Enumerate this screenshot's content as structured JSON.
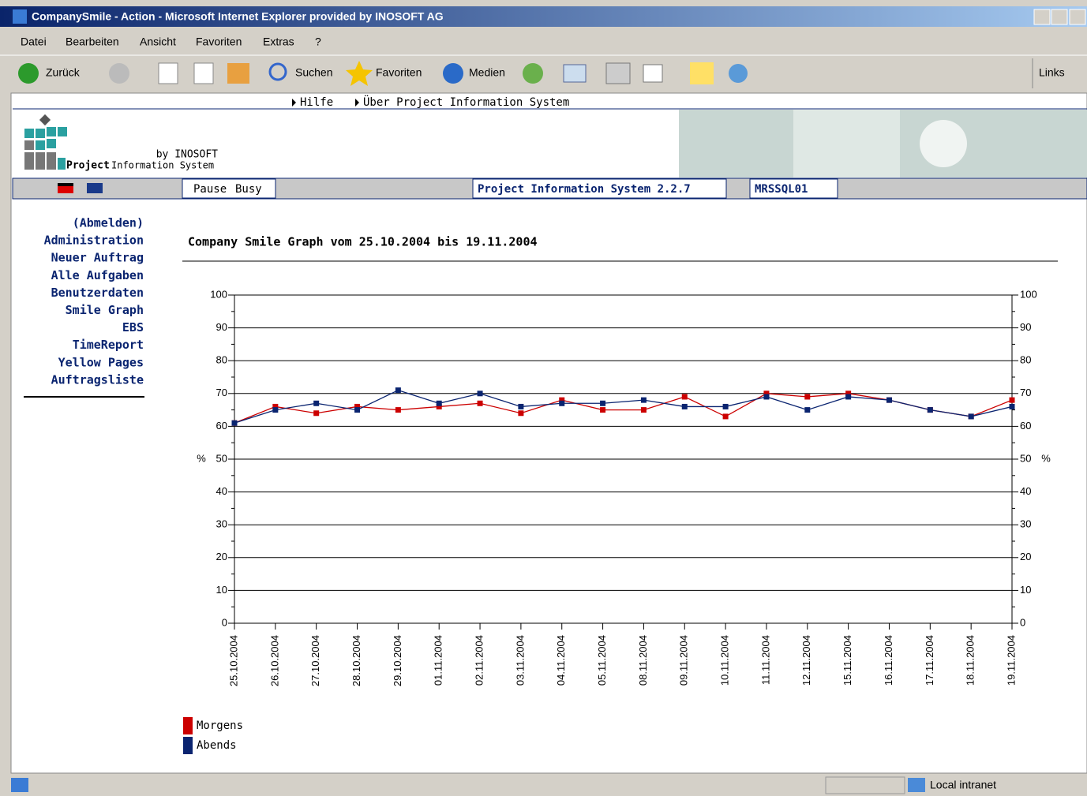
{
  "window": {
    "title": "CompanySmile - Action - Microsoft Internet Explorer provided by INOSOFT AG"
  },
  "menu": [
    "Datei",
    "Bearbeiten",
    "Ansicht",
    "Favoriten",
    "Extras",
    "?"
  ],
  "toolbar": {
    "back": "Zurück",
    "search": "Suchen",
    "favorites": "Favoriten",
    "media": "Medien",
    "links": "Links"
  },
  "page": {
    "top_links": [
      "Hilfe",
      "Über Project Information System"
    ],
    "logo": {
      "by": "by INOSOFT",
      "project": "Project",
      "system": "Information System"
    },
    "status": {
      "pause": "Pause",
      "busy": "Busy",
      "product": "Project Information System 2.2.7",
      "server": "MRSSQL01"
    },
    "nav": [
      "(Abmelden)",
      "Administration",
      "Neuer Auftrag",
      "Alle Aufgaben",
      "Benutzerdaten",
      "Smile Graph",
      "EBS",
      "TimeReport",
      "Yellow Pages",
      "Auftragsliste"
    ]
  },
  "status_bar": {
    "zone": "Local intranet"
  },
  "chart_data": {
    "type": "line",
    "title": "Company Smile Graph vom 25.10.2004 bis 19.11.2004",
    "categories": [
      "25.10.2004",
      "26.10.2004",
      "27.10.2004",
      "28.10.2004",
      "29.10.2004",
      "01.11.2004",
      "02.11.2004",
      "03.11.2004",
      "04.11.2004",
      "05.11.2004",
      "08.11.2004",
      "09.11.2004",
      "10.11.2004",
      "11.11.2004",
      "12.11.2004",
      "15.11.2004",
      "16.11.2004",
      "17.11.2004",
      "18.11.2004",
      "19.11.2004"
    ],
    "series": [
      {
        "name": "Morgens",
        "color": "#cc0000",
        "values": [
          61,
          66,
          64,
          66,
          65,
          66,
          67,
          64,
          68,
          65,
          65,
          69,
          63,
          70,
          69,
          70,
          68,
          65,
          63,
          68
        ]
      },
      {
        "name": "Abends",
        "color": "#0a2470",
        "values": [
          61,
          65,
          67,
          65,
          71,
          67,
          70,
          66,
          67,
          67,
          68,
          66,
          66,
          69,
          65,
          69,
          68,
          65,
          63,
          66
        ]
      }
    ],
    "ylim": [
      0,
      100
    ],
    "yticks": [
      0,
      10,
      20,
      30,
      40,
      50,
      60,
      70,
      80,
      90,
      100
    ],
    "ylabel": "%",
    "grid": true,
    "legend": "bottom-left"
  }
}
